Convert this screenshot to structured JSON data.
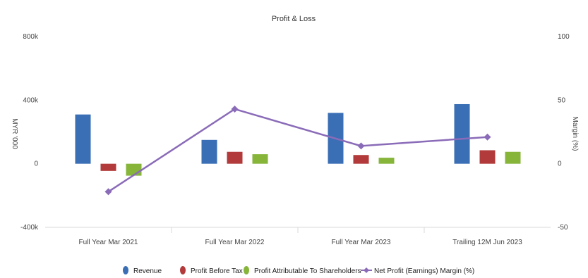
{
  "chart_data": {
    "type": "bar",
    "title": "Profit & Loss",
    "categories": [
      "Full Year Mar 2021",
      "Full Year Mar 2022",
      "Full Year Mar 2023",
      "Trailing 12M Jun 2023"
    ],
    "ylabel": "MYR '000",
    "ylim": [
      -400000,
      800000
    ],
    "yticks": [
      -400000,
      0,
      400000,
      800000
    ],
    "ytick_labels": [
      "-400k",
      "0",
      "400k",
      "800k"
    ],
    "y2label": "Margin (%)",
    "y2lim": [
      -50,
      100
    ],
    "y2ticks": [
      -50,
      0,
      50,
      100
    ],
    "y2tick_labels": [
      "-50",
      "0",
      "50",
      "100"
    ],
    "grid": "vertical separators between categories",
    "legend_position": "bottom",
    "series": [
      {
        "name": "Revenue",
        "type": "bar",
        "color": "#3a6fb5",
        "values": [
          310000,
          150000,
          320000,
          375000
        ]
      },
      {
        "name": "Profit Before Tax",
        "type": "bar",
        "color": "#b23a3a",
        "values": [
          -45000,
          75000,
          55000,
          85000
        ]
      },
      {
        "name": "Profit Attributable To Shareholders",
        "type": "bar",
        "color": "#86b53a",
        "values": [
          -75000,
          60000,
          38000,
          75000
        ]
      },
      {
        "name": "Net Profit (Earnings) Margin (%)",
        "type": "line",
        "axis": "right",
        "color": "#8a6bb8",
        "values": [
          -22,
          43,
          14,
          21
        ]
      }
    ]
  }
}
